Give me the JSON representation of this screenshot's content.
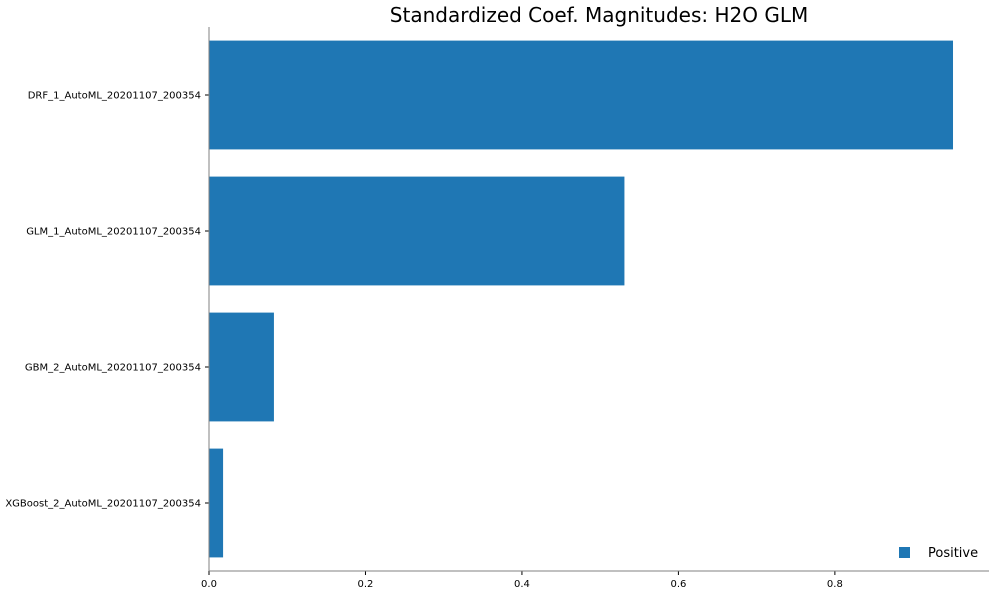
{
  "chart_data": {
    "type": "bar",
    "orientation": "horizontal",
    "title": "Standardized Coef. Magnitudes: H2O GLM",
    "xlabel": "",
    "ylabel": "",
    "categories": [
      "DRF_1_AutoML_20201107_200354",
      "GLM_1_AutoML_20201107_200354",
      "GBM_2_AutoML_20201107_200354",
      "XGBoost_2_AutoML_20201107_200354"
    ],
    "series": [
      {
        "name": "Positive",
        "values": [
          0.951,
          0.531,
          0.083,
          0.018
        ],
        "color": "#1f77b4"
      }
    ],
    "xlim": [
      0,
      0.997
    ],
    "xticks": [
      0.0,
      0.2,
      0.4,
      0.6,
      0.8
    ],
    "xtick_labels": [
      "0.0",
      "0.2",
      "0.4",
      "0.6",
      "0.8"
    ],
    "grid": false,
    "legend_position": "bottom-right"
  }
}
